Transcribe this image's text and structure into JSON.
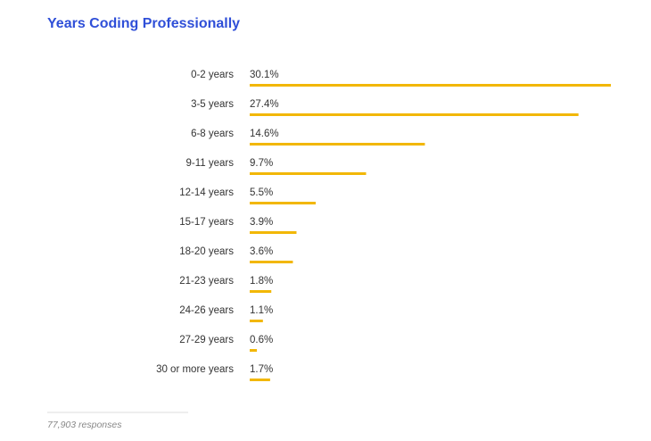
{
  "chart_data": {
    "type": "bar",
    "orientation": "horizontal",
    "title": "Years Coding Professionally",
    "categories": [
      "0-2 years",
      "3-5 years",
      "6-8 years",
      "9-11 years",
      "12-14 years",
      "15-17 years",
      "18-20 years",
      "21-23 years",
      "24-26 years",
      "27-29 years",
      "30 or more years"
    ],
    "values": [
      30.1,
      27.4,
      14.6,
      9.7,
      5.5,
      3.9,
      3.6,
      1.8,
      1.1,
      0.6,
      1.7
    ],
    "value_labels": [
      "30.1%",
      "27.4%",
      "14.6%",
      "9.7%",
      "5.5%",
      "3.9%",
      "3.6%",
      "1.8%",
      "1.1%",
      "0.6%",
      "1.7%"
    ],
    "color": "#f2b705",
    "footnote": "77,903 responses"
  }
}
